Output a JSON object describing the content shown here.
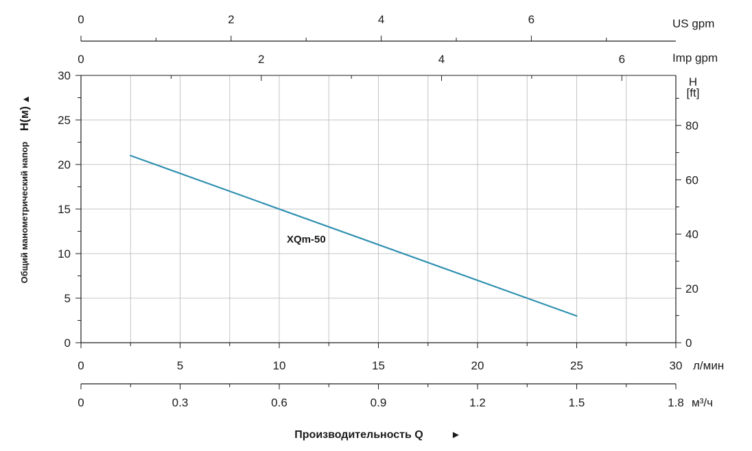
{
  "chart_data": {
    "type": "line",
    "title": "",
    "xlabel": "Производительность Q",
    "xlabel_arrow": "►",
    "ylabel": "Общий манометрический напор",
    "ylabel_unit": "H(м)",
    "ylabel_arrow": "▲",
    "xlim": [
      0,
      30
    ],
    "ylim": [
      0,
      30
    ],
    "grid": true,
    "series": [
      {
        "name": "XQm-50",
        "x": [
          2.5,
          25
        ],
        "y": [
          21,
          3
        ],
        "color": "#2e8fb0"
      }
    ],
    "axes": {
      "x_lmin": {
        "unit": "л/мин",
        "ticks": [
          0,
          5,
          10,
          15,
          20,
          25,
          30
        ],
        "range": [
          0,
          30
        ]
      },
      "x_m3h": {
        "unit": "м³/ч",
        "ticks": [
          "0",
          "0.3",
          "0.6",
          "0.9",
          "1.2",
          "1.5",
          "1.8"
        ],
        "range": [
          0,
          1.8
        ]
      },
      "x_usgpm": {
        "unit": "US gpm",
        "ticks": [
          0,
          2,
          4,
          6
        ],
        "range": [
          0,
          7.925
        ]
      },
      "x_impgpm": {
        "unit": "Imp gpm",
        "ticks": [
          0,
          2,
          4,
          6
        ],
        "range": [
          0,
          6.599
        ]
      },
      "y_m": {
        "ticks": [
          0,
          5,
          10,
          15,
          20,
          25,
          30
        ],
        "range": [
          0,
          30
        ]
      },
      "y_ft": {
        "unit_line1": "H",
        "unit_line2": "[ft]",
        "ticks": [
          0,
          20,
          40,
          60,
          80
        ],
        "range": [
          0,
          98.43
        ]
      }
    }
  }
}
